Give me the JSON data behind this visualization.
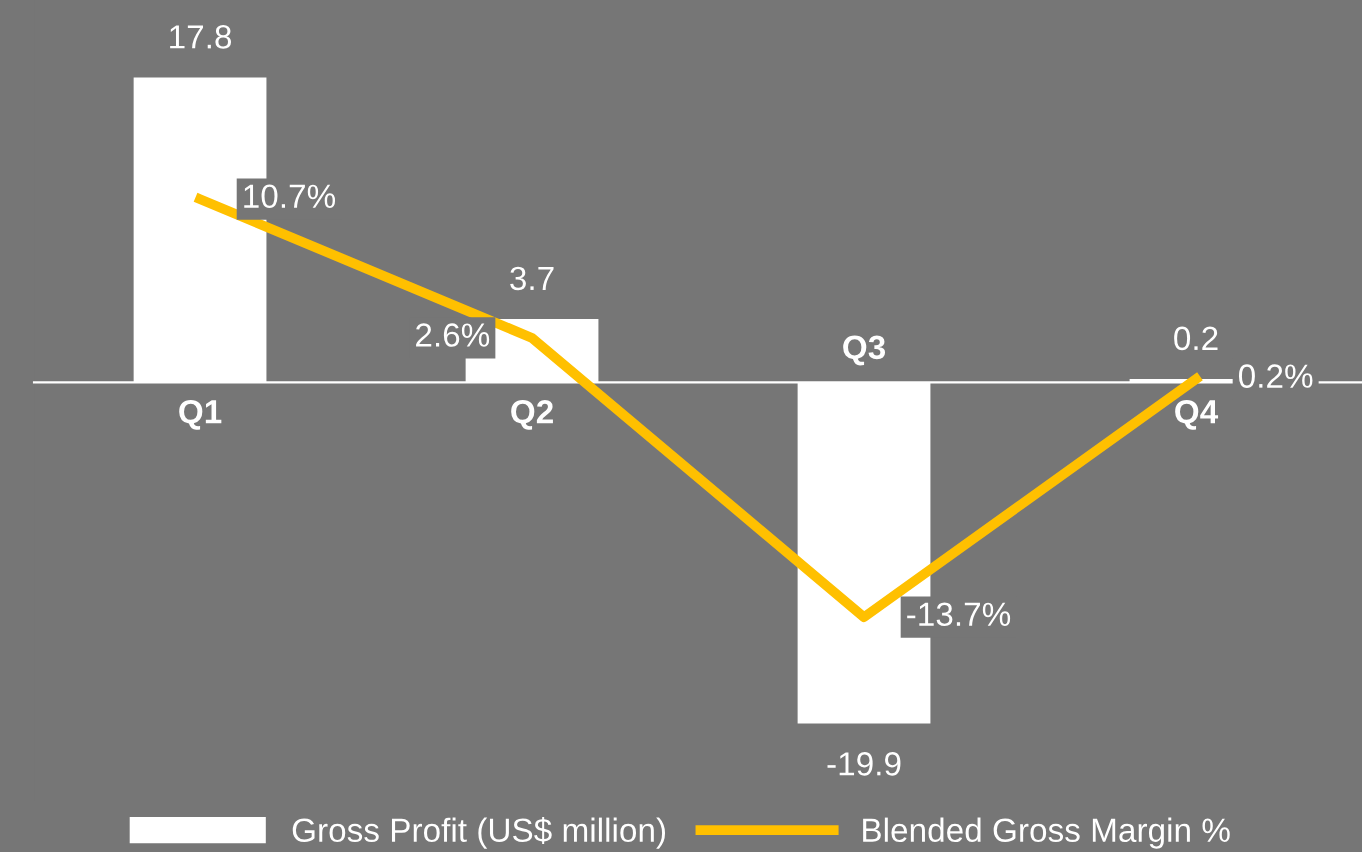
{
  "chart_data": {
    "type": "bar",
    "categories": [
      "Q1",
      "Q2",
      "Q3",
      "Q4"
    ],
    "series": [
      {
        "name": "Gross Profit (US$ million)",
        "color": "#ffffff",
        "values": [
          17.8,
          3.7,
          -19.9,
          0.2
        ]
      },
      {
        "name": "Blended Gross Margin %",
        "type": "line",
        "color": "#ffc000",
        "values": [
          10.7,
          2.6,
          -13.7,
          0.2
        ],
        "value_labels": [
          "10.7%",
          "2.6%",
          "-13.7%",
          "0.2%"
        ]
      }
    ],
    "data_labels": true,
    "tick_labels": "x",
    "legend": "bottom",
    "marker": "none"
  }
}
